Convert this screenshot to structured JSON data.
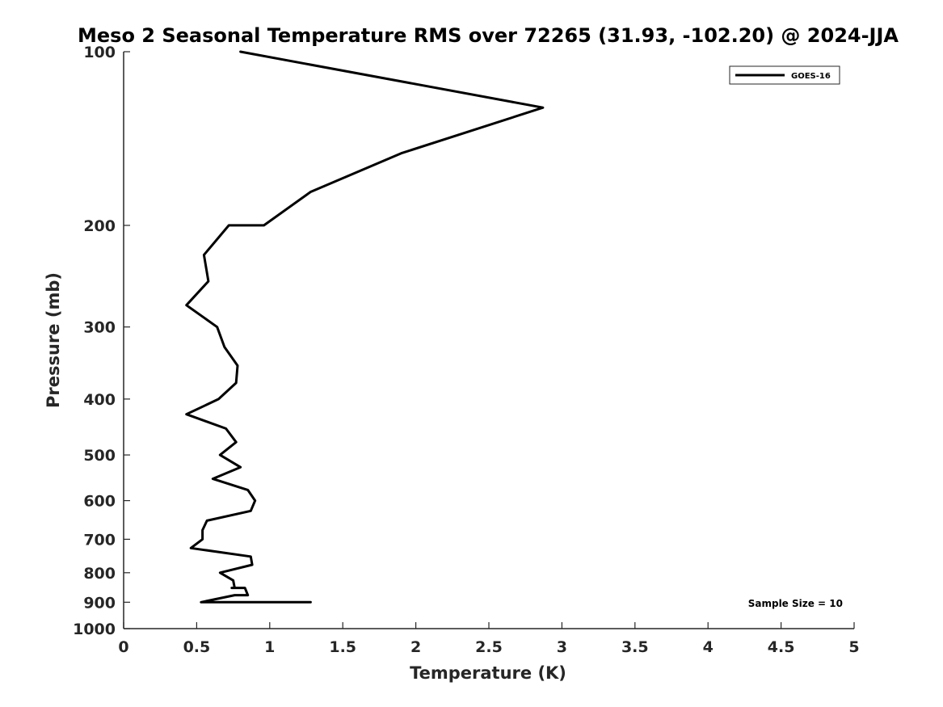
{
  "chart_data": {
    "type": "line",
    "title": "Meso 2 Seasonal Temperature RMS over 72265 (31.93, -102.20) @ 2024-JJA",
    "xlabel": "Temperature (K)",
    "ylabel": "Pressure (mb)",
    "xlim": [
      0,
      5
    ],
    "ylim": [
      100,
      1000
    ],
    "yscale": "log",
    "y_reversed": true,
    "grid": false,
    "legend_position": "top-right",
    "xticks": [
      0,
      0.5,
      1,
      1.5,
      2,
      2.5,
      3,
      3.5,
      4,
      4.5,
      5
    ],
    "xtick_labels": [
      "0",
      "0.5",
      "1",
      "1.5",
      "2",
      "2.5",
      "3",
      "3.5",
      "4",
      "4.5",
      "5"
    ],
    "yticks": [
      100,
      200,
      300,
      400,
      500,
      600,
      700,
      800,
      900,
      1000
    ],
    "ytick_labels": [
      "100",
      "200",
      "300",
      "400",
      "500",
      "600",
      "700",
      "800",
      "900",
      "1000"
    ],
    "annotation": "Sample Size = 10",
    "series": [
      {
        "name": "GOES-16",
        "color": "#000000",
        "points": [
          [
            0.8,
            100
          ],
          [
            2.87,
            125
          ],
          [
            1.9,
            150
          ],
          [
            1.28,
            175
          ],
          [
            0.96,
            200
          ],
          [
            0.72,
            200
          ],
          [
            0.55,
            225
          ],
          [
            0.58,
            250
          ],
          [
            0.43,
            275
          ],
          [
            0.64,
            300
          ],
          [
            0.69,
            325
          ],
          [
            0.78,
            350
          ],
          [
            0.77,
            375
          ],
          [
            0.65,
            400
          ],
          [
            0.43,
            425
          ],
          [
            0.7,
            450
          ],
          [
            0.77,
            475
          ],
          [
            0.66,
            500
          ],
          [
            0.8,
            525
          ],
          [
            0.61,
            550
          ],
          [
            0.85,
            575
          ],
          [
            0.9,
            600
          ],
          [
            0.87,
            625
          ],
          [
            0.57,
            650
          ],
          [
            0.54,
            675
          ],
          [
            0.54,
            700
          ],
          [
            0.46,
            725
          ],
          [
            0.87,
            750
          ],
          [
            0.88,
            775
          ],
          [
            0.66,
            800
          ],
          [
            0.75,
            825
          ],
          [
            0.76,
            850
          ],
          [
            0.74,
            850
          ],
          [
            0.83,
            850
          ],
          [
            0.85,
            875
          ],
          [
            0.76,
            875
          ],
          [
            0.53,
            900
          ],
          [
            0.8,
            900
          ],
          [
            1.28,
            900
          ]
        ]
      }
    ]
  }
}
